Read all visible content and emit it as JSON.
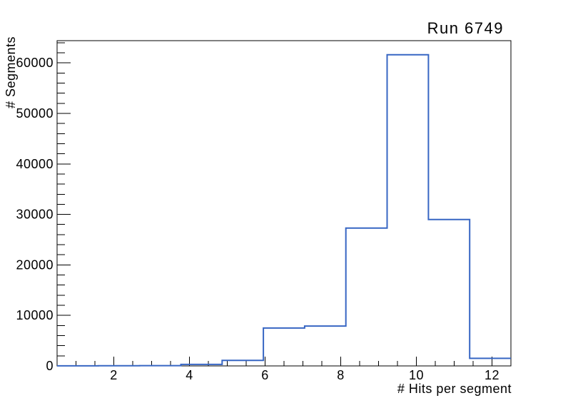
{
  "page": {
    "background": "#ffffff"
  },
  "chart_data": {
    "type": "bar",
    "subtype": "step-histogram",
    "title": "Run 6749",
    "xlabel": "# Hits per segment",
    "ylabel": "# Segments",
    "xlim": [
      0.5,
      12.5
    ],
    "ylim": [
      0,
      64400
    ],
    "grid": false,
    "bin_edges": [
      0.5,
      1.591,
      2.682,
      3.773,
      4.864,
      5.955,
      7.045,
      8.136,
      9.227,
      10.318,
      11.409,
      12.5
    ],
    "values": [
      20,
      30,
      60,
      300,
      1100,
      7500,
      7900,
      27300,
      61600,
      29000,
      1500
    ],
    "x_ticks": {
      "major": [
        2,
        4,
        6,
        8,
        10,
        12
      ],
      "labels": [
        "2",
        "4",
        "6",
        "8",
        "10",
        "12"
      ],
      "minor_step": 0.5
    },
    "y_ticks": {
      "major": [
        0,
        10000,
        20000,
        30000,
        40000,
        50000,
        60000
      ],
      "labels": [
        "0",
        "10000",
        "20000",
        "30000",
        "40000",
        "50000",
        "60000"
      ],
      "minor_step": 2000
    },
    "line_color": "#3766c3",
    "frame_color": "#000000",
    "text_color": "#000000"
  }
}
